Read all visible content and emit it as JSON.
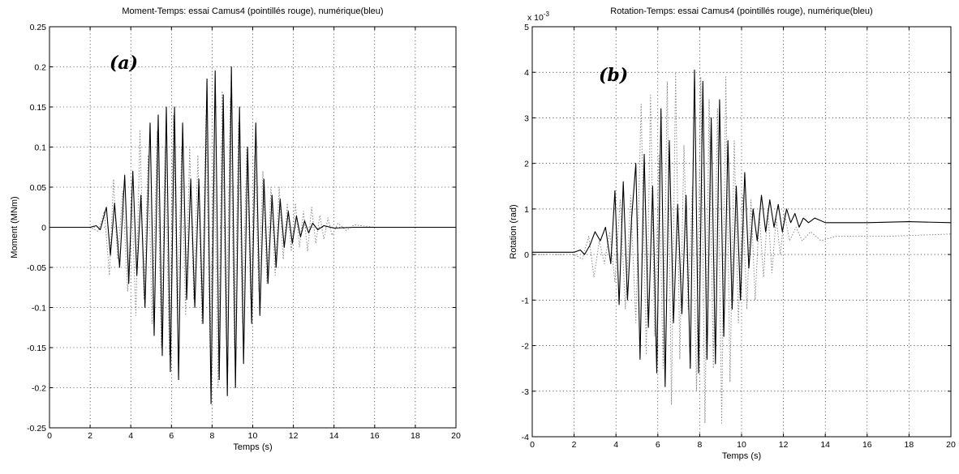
{
  "chart_data": [
    {
      "type": "line",
      "panel_tag": "(a)",
      "title": "Moment-Temps: essai Camus4 (pointillés rouge), numérique(bleu)",
      "xlabel": "Temps (s)",
      "ylabel": "Moment (MNm)",
      "xlim": [
        0,
        20
      ],
      "ylim": [
        -0.25,
        0.25
      ],
      "xticks": [
        0,
        2,
        4,
        6,
        8,
        10,
        12,
        14,
        16,
        18,
        20
      ],
      "yticks": [
        -0.25,
        -0.2,
        -0.15,
        -0.1,
        -0.05,
        0,
        0.05,
        0.1,
        0.15,
        0.2,
        0.25
      ],
      "xtick_labels": [
        "0",
        "2",
        "4",
        "6",
        "8",
        "10",
        "12",
        "14",
        "16",
        "18",
        "20"
      ],
      "ytick_labels": [
        "-0.25",
        "-0.2",
        "-0.15",
        "-0.1",
        "-0.05",
        "0",
        "0.05",
        "0.1",
        "0.15",
        "0.2",
        "0.25"
      ],
      "grid": true,
      "series": [
        {
          "style": "solid",
          "color": "#000000",
          "x": [
            0,
            2.0,
            2.3,
            2.5,
            2.8,
            3.0,
            3.2,
            3.45,
            3.7,
            3.9,
            4.1,
            4.3,
            4.5,
            4.7,
            4.95,
            5.15,
            5.35,
            5.55,
            5.75,
            5.95,
            6.15,
            6.35,
            6.55,
            6.75,
            6.95,
            7.15,
            7.35,
            7.55,
            7.75,
            7.95,
            8.15,
            8.35,
            8.55,
            8.75,
            8.95,
            9.15,
            9.35,
            9.55,
            9.75,
            9.95,
            10.15,
            10.35,
            10.55,
            10.75,
            10.95,
            11.15,
            11.35,
            11.55,
            11.75,
            11.95,
            12.15,
            12.35,
            12.55,
            12.75,
            12.95,
            13.2,
            13.5,
            14.0,
            15.0,
            16.0,
            18.0,
            20.0
          ],
          "y": [
            0,
            0.0,
            0.002,
            -0.003,
            0.025,
            -0.035,
            0.03,
            -0.05,
            0.065,
            -0.07,
            0.07,
            -0.06,
            0.04,
            -0.1,
            0.13,
            -0.135,
            0.14,
            -0.16,
            0.15,
            -0.18,
            0.15,
            -0.19,
            0.13,
            -0.09,
            0.06,
            -0.1,
            0.06,
            -0.12,
            0.185,
            -0.22,
            0.195,
            -0.19,
            0.165,
            -0.21,
            0.2,
            -0.2,
            0.15,
            -0.17,
            0.1,
            -0.12,
            0.13,
            -0.11,
            0.06,
            -0.07,
            0.04,
            -0.05,
            0.035,
            -0.025,
            0.02,
            -0.02,
            0.014,
            -0.012,
            0.008,
            -0.007,
            0.005,
            -0.003,
            0.002,
            -0.001,
            0.0,
            0.0,
            0.0,
            0.0
          ]
        },
        {
          "style": "dotted",
          "color": "#888888",
          "x": [
            0,
            2.0,
            2.4,
            2.7,
            2.95,
            3.15,
            3.35,
            3.6,
            3.85,
            4.05,
            4.25,
            4.45,
            4.65,
            4.85,
            5.05,
            5.3,
            5.5,
            5.7,
            5.9,
            6.1,
            6.3,
            6.5,
            6.7,
            6.9,
            7.1,
            7.3,
            7.5,
            7.7,
            7.9,
            8.1,
            8.3,
            8.5,
            8.7,
            8.9,
            9.1,
            9.3,
            9.5,
            9.7,
            9.9,
            10.1,
            10.3,
            10.5,
            10.7,
            10.9,
            11.1,
            11.3,
            11.5,
            11.7,
            11.9,
            12.1,
            12.3,
            12.5,
            12.7,
            12.9,
            13.1,
            13.3,
            13.5,
            13.7,
            13.9,
            14.2,
            14.6,
            15.0,
            16.0,
            18.0,
            20.0
          ],
          "y": [
            0,
            0.0,
            -0.005,
            0.02,
            -0.06,
            0.06,
            -0.04,
            0.045,
            -0.08,
            0.03,
            -0.11,
            0.12,
            -0.09,
            0.09,
            -0.12,
            0.12,
            -0.15,
            0.1,
            -0.16,
            0.14,
            -0.12,
            0.1,
            -0.11,
            0.1,
            -0.09,
            0.09,
            -0.12,
            0.14,
            -0.15,
            0.11,
            -0.2,
            0.17,
            -0.14,
            0.16,
            -0.15,
            0.13,
            -0.12,
            0.1,
            -0.09,
            0.09,
            -0.08,
            0.07,
            -0.07,
            0.05,
            -0.06,
            0.05,
            -0.04,
            0.03,
            -0.03,
            0.03,
            -0.025,
            0.02,
            -0.03,
            0.025,
            -0.02,
            0.015,
            -0.015,
            0.012,
            -0.01,
            0.005,
            -0.004,
            0.003,
            0.0,
            0.0,
            0.0
          ]
        }
      ]
    },
    {
      "type": "line",
      "panel_tag": "(b)",
      "title": "Rotation-Temps: essai Camus4 (pointillés rouge), numérique(bleu)",
      "xlabel": "Temps (s)",
      "ylabel": "Rotation (rad)",
      "y_multiplier_base": "x 10",
      "y_multiplier_exponent": "-3",
      "xlim": [
        0,
        20
      ],
      "ylim": [
        -4,
        5
      ],
      "xticks": [
        0,
        2,
        4,
        6,
        8,
        10,
        12,
        14,
        16,
        18,
        20
      ],
      "yticks": [
        -4,
        -3,
        -2,
        -1,
        0,
        1,
        2,
        3,
        4,
        5
      ],
      "xtick_labels": [
        "0",
        "2",
        "4",
        "6",
        "8",
        "10",
        "12",
        "14",
        "16",
        "18",
        "20"
      ],
      "ytick_labels": [
        "-4",
        "-3",
        "-2",
        "-1",
        "0",
        "1",
        "2",
        "3",
        "4",
        "5"
      ],
      "grid": true,
      "series": [
        {
          "style": "solid",
          "color": "#000000",
          "x": [
            0,
            2.0,
            2.3,
            2.5,
            2.75,
            3.0,
            3.25,
            3.5,
            3.75,
            3.95,
            4.15,
            4.35,
            4.55,
            4.75,
            4.95,
            5.15,
            5.35,
            5.55,
            5.75,
            5.95,
            6.15,
            6.35,
            6.55,
            6.75,
            6.95,
            7.15,
            7.35,
            7.55,
            7.75,
            7.95,
            8.15,
            8.35,
            8.55,
            8.75,
            8.95,
            9.15,
            9.35,
            9.55,
            9.75,
            9.95,
            10.15,
            10.35,
            10.55,
            10.75,
            10.95,
            11.15,
            11.35,
            11.55,
            11.75,
            11.95,
            12.15,
            12.35,
            12.55,
            12.75,
            12.95,
            13.2,
            13.5,
            14.0,
            15.0,
            16.0,
            18.0,
            20.0
          ],
          "y": [
            0.05,
            0.05,
            0.1,
            0.0,
            0.2,
            0.5,
            0.3,
            0.6,
            -0.2,
            1.4,
            -1.1,
            1.6,
            -1.0,
            0.8,
            2.0,
            -2.3,
            2.2,
            -1.6,
            1.5,
            -2.6,
            3.2,
            -2.9,
            2.5,
            -1.5,
            1.1,
            -1.3,
            1.3,
            -2.5,
            4.05,
            -2.6,
            3.8,
            -2.3,
            3.0,
            -2.4,
            3.4,
            -1.8,
            2.5,
            -1.2,
            1.5,
            -1.0,
            1.8,
            -0.3,
            1.0,
            0.3,
            1.3,
            0.5,
            1.2,
            0.6,
            1.1,
            0.5,
            1.0,
            0.7,
            0.9,
            0.6,
            0.8,
            0.7,
            0.8,
            0.7,
            0.7,
            0.7,
            0.72,
            0.7
          ]
        },
        {
          "style": "dotted",
          "color": "#888888",
          "x": [
            0,
            2.0,
            2.4,
            2.7,
            2.95,
            3.2,
            3.45,
            3.7,
            3.95,
            4.2,
            4.45,
            4.7,
            4.95,
            5.2,
            5.45,
            5.65,
            5.85,
            6.05,
            6.25,
            6.45,
            6.65,
            6.85,
            7.05,
            7.25,
            7.45,
            7.65,
            7.85,
            8.05,
            8.25,
            8.45,
            8.65,
            8.85,
            9.05,
            9.25,
            9.45,
            9.65,
            9.85,
            10.05,
            10.25,
            10.45,
            10.65,
            10.85,
            11.05,
            11.25,
            11.45,
            11.65,
            11.85,
            12.05,
            12.3,
            12.6,
            12.9,
            13.3,
            13.8,
            14.5,
            15.5,
            17.0,
            20.0
          ],
          "y": [
            0,
            0.0,
            -0.1,
            0.4,
            -0.5,
            0.3,
            -0.2,
            0.5,
            -0.6,
            1.2,
            -1.2,
            1.3,
            -1.5,
            3.3,
            -2.2,
            3.5,
            -1.8,
            2.2,
            -2.5,
            3.8,
            -3.3,
            4.0,
            -2.3,
            2.4,
            -1.2,
            1.5,
            -3.0,
            3.9,
            -3.7,
            3.4,
            -2.5,
            3.2,
            -3.7,
            3.9,
            -2.8,
            2.5,
            -1.5,
            1.3,
            -1.2,
            1.2,
            -1.0,
            0.9,
            -0.5,
            1.0,
            -0.4,
            0.8,
            0.0,
            0.9,
            0.3,
            0.6,
            0.3,
            0.5,
            0.3,
            0.4,
            0.4,
            0.4,
            0.45
          ]
        }
      ]
    }
  ]
}
